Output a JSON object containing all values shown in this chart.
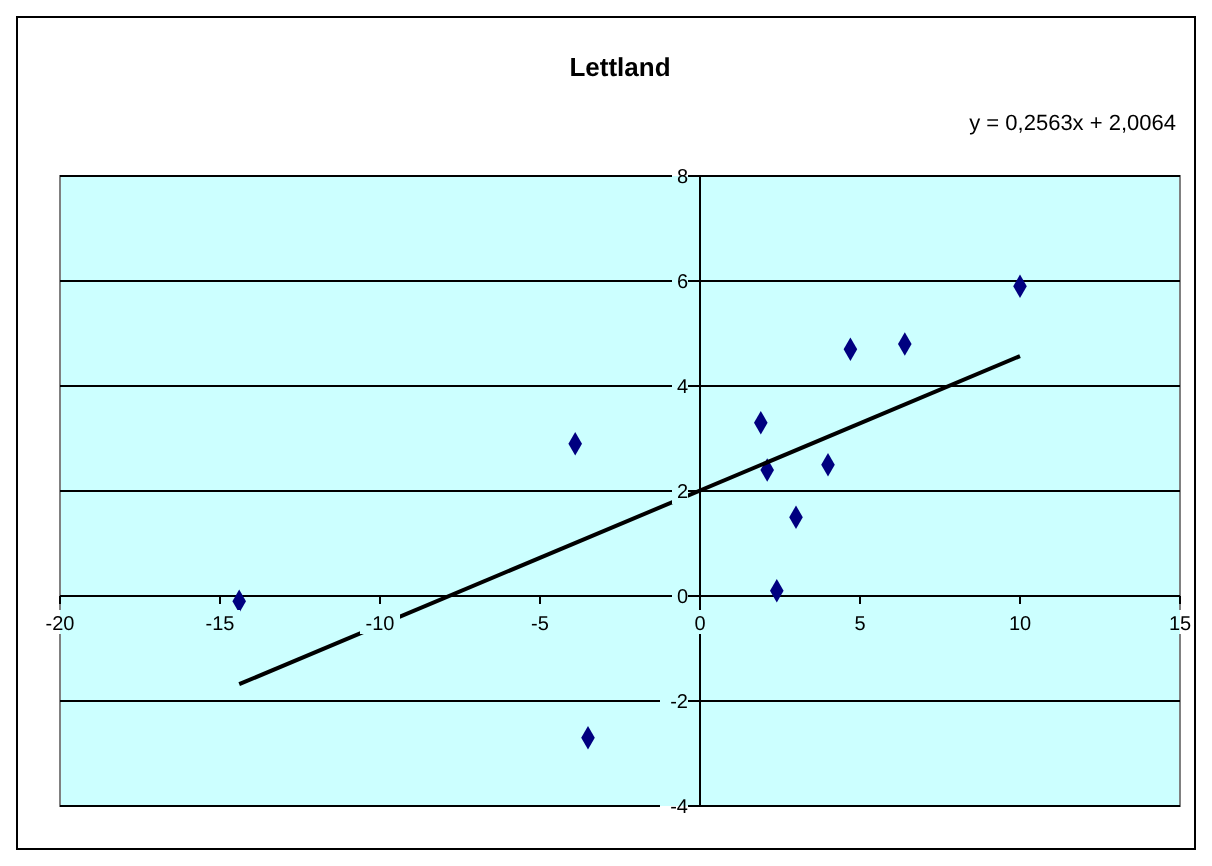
{
  "chart_data": {
    "type": "scatter",
    "title": "Lettland",
    "annotations": [
      "y = 0,2563x + 2,0064"
    ],
    "xlim": [
      -20,
      15
    ],
    "xticks": [
      -20,
      -15,
      -10,
      -5,
      0,
      5,
      10,
      15
    ],
    "ylim": [
      -4,
      8
    ],
    "yticks": [
      -4,
      -2,
      0,
      2,
      4,
      6,
      8
    ],
    "grid": "y",
    "marker": "diamond",
    "series": [
      {
        "color": "#000080",
        "x": [
          -14.4,
          -3.9,
          -3.5,
          1.9,
          2.1,
          2.4,
          3.0,
          4.0,
          4.7,
          6.4,
          10.0
        ],
        "values": [
          -0.1,
          2.9,
          -2.7,
          3.3,
          2.4,
          0.1,
          1.5,
          2.5,
          4.7,
          4.8,
          5.9
        ]
      },
      {
        "type": "line",
        "color": "#000000",
        "line_style": "solid",
        "marker": "none",
        "x": [
          -14.4,
          10.0
        ],
        "values": [
          -1.68,
          4.57
        ]
      }
    ]
  }
}
